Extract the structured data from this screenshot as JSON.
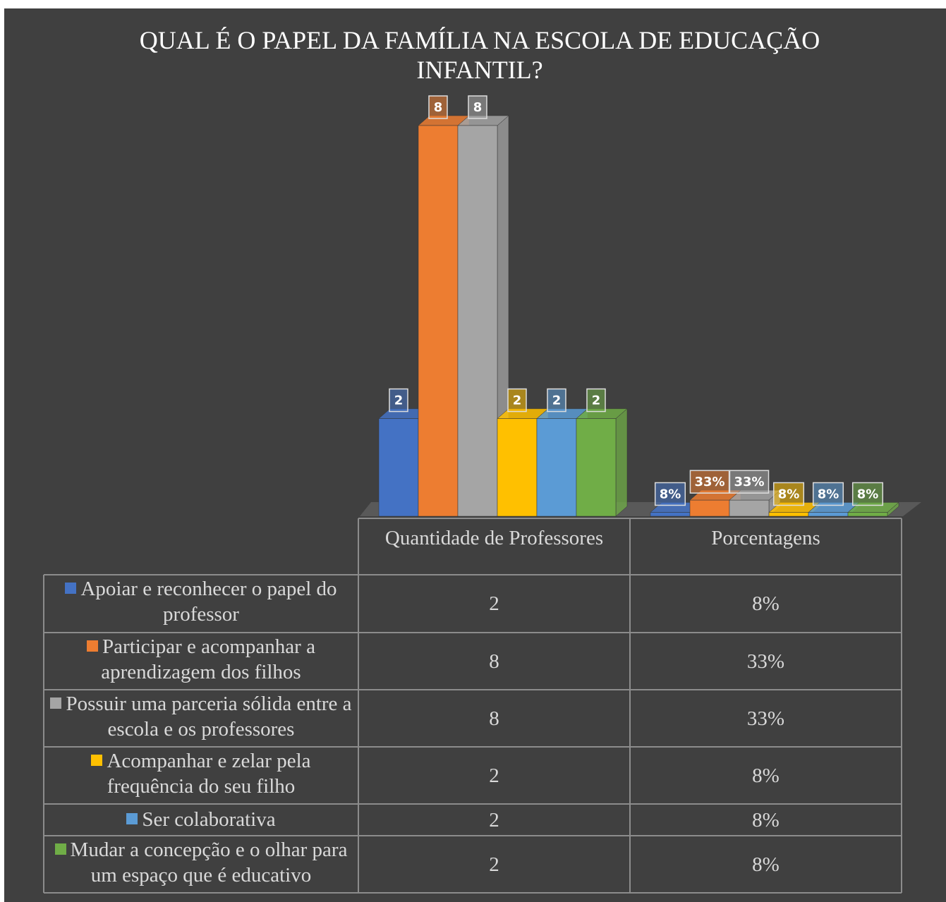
{
  "chart_data": {
    "type": "bar3d",
    "title": "QUAL É O PAPEL DA FAMÍLIA NA ESCOLA DE EDUCAÇÃO INFANTIL?",
    "categories": [
      "Quantidade de Professores",
      "Porcentagens"
    ],
    "ylim": [
      0,
      8
    ],
    "series": [
      {
        "name": "Apoiar e reconhecer o papel do professor",
        "color": "#4472c4",
        "values": [
          2,
          0.08
        ],
        "value_labels": [
          null,
          "8%"
        ]
      },
      {
        "name": "Participar e acompanhar a aprendizagem dos filhos",
        "color": "#ed7d31",
        "values": [
          8,
          0.33
        ],
        "value_labels": [
          null,
          "33%"
        ]
      },
      {
        "name": "Possuir uma parceria sólida entre a escola e os professores",
        "color": "#a5a5a5",
        "values": [
          8,
          0.33
        ],
        "value_labels": [
          null,
          "33%"
        ]
      },
      {
        "name": "Acompanhar e zelar pela frequência do seu filho",
        "color": "#ffc000",
        "values": [
          2,
          0.08
        ],
        "value_labels": [
          null,
          "8%"
        ]
      },
      {
        "name": "Ser colaborativa",
        "color": "#5b9bd5",
        "values": [
          2,
          0.08
        ],
        "value_labels": [
          null,
          "8%"
        ]
      },
      {
        "name": "Mudar a concepção e o olhar para um espaço que é educativo",
        "color": "#70ad47",
        "values": [
          2,
          0.08
        ],
        "value_labels": [
          null,
          "8%"
        ]
      }
    ]
  }
}
